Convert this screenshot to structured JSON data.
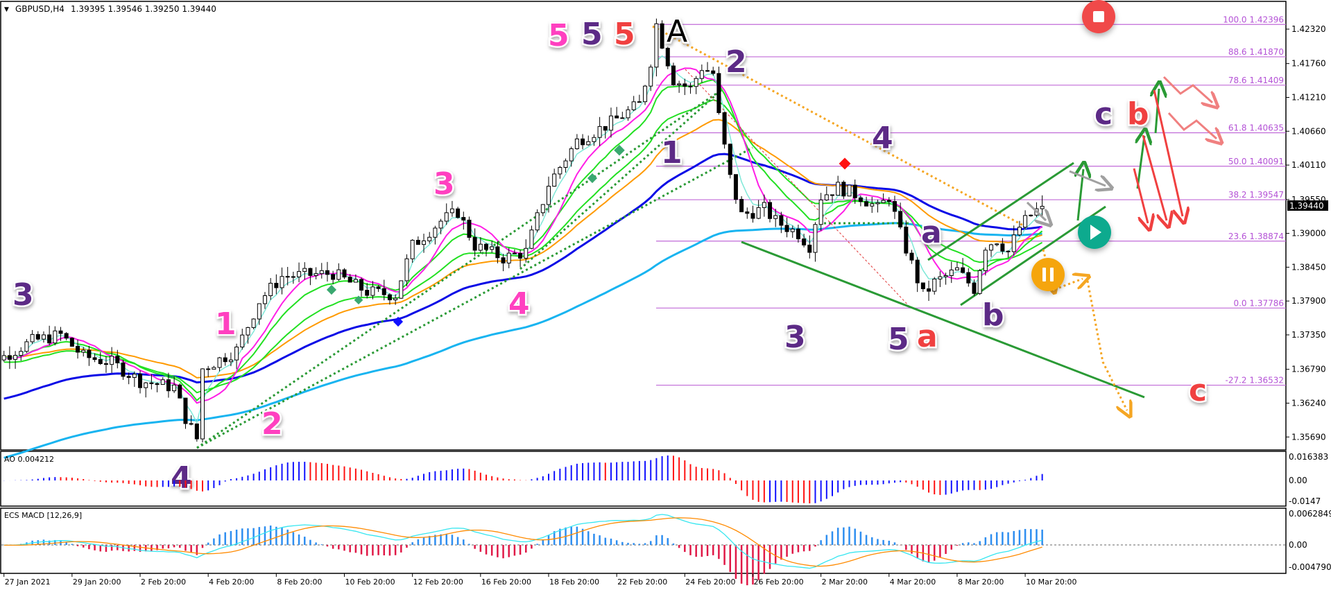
{
  "header": {
    "menu_glyph": "▼",
    "symbol": "GBPUSD,H4",
    "ohlc": "1.39395 1.39546 1.39250 1.39440"
  },
  "ao_panel": {
    "label": "AO 0.004212",
    "ticks": [
      "0.016383",
      "0.00",
      "-0.0147"
    ]
  },
  "macd_panel": {
    "label": "ECS MACD [12,26,9]",
    "ticks": [
      "0.0062849",
      "0.00",
      "-0.0047902"
    ]
  },
  "colors": {
    "fib": "#b452d6",
    "bull_candle": "#ffffff",
    "bear_candle": "#000000",
    "ma_blue": "#0a0ae6",
    "ma_lightblue": "#18b4f0",
    "ma_orange": "#ff9a00",
    "ma_green": "#22e022",
    "ma_magenta": "#ff1ee6",
    "ma_cyan": "#7fe8d8",
    "ao_up": "#1010ff",
    "ao_down": "#ff1010",
    "macd_line": "#35e6f0",
    "macd_signal": "#ff8a00",
    "macd_hist_pos": "#2e8ef0",
    "macd_hist_neg": "#e01846",
    "trend_green": "#2a9a35",
    "trend_orange": "#f5a623",
    "arrow_red": "#f04040",
    "arrow_gray": "#a0a0a0"
  },
  "chart_data": {
    "type": "candlestick",
    "symbol": "GBPUSD",
    "timeframe": "H4",
    "current_price": "1.39440",
    "y_ticks": [
      "1.42320",
      "1.41760",
      "1.41210",
      "1.40660",
      "1.40110",
      "1.39550",
      "1.39000",
      "1.38450",
      "1.37900",
      "1.37350",
      "1.36790",
      "1.36240",
      "1.35690"
    ],
    "ylim": [
      1.355,
      1.426
    ],
    "x_ticks": [
      "27 Jan 2021",
      "29 Jan 20:00",
      "2 Feb 20:00",
      "4 Feb 20:00",
      "8 Feb 20:00",
      "10 Feb 20:00",
      "12 Feb 20:00",
      "16 Feb 20:00",
      "18 Feb 20:00",
      "22 Feb 20:00",
      "24 Feb 20:00",
      "26 Feb 20:00",
      "2 Mar 20:00",
      "4 Mar 20:00",
      "8 Mar 20:00",
      "10 Mar 20:00"
    ],
    "price_path": [
      {
        "t": "27 Jan 20:00",
        "p": 1.37
      },
      {
        "t": "28 Jan 16:00",
        "p": 1.3725
      },
      {
        "t": "29 Jan 12:00",
        "p": 1.3735
      },
      {
        "t": "1 Feb 04:00",
        "p": 1.37
      },
      {
        "t": "2 Feb 00:00",
        "p": 1.369
      },
      {
        "t": "2 Feb 20:00",
        "p": 1.366
      },
      {
        "t": "3 Feb 20:00",
        "p": 1.365
      },
      {
        "t": "4 Feb 04:00",
        "p": 1.36
      },
      {
        "t": "4 Feb 12:00",
        "p": 1.3566
      },
      {
        "t": "4 Feb 16:00",
        "p": 1.368
      },
      {
        "t": "5 Feb 16:00",
        "p": 1.371
      },
      {
        "t": "8 Feb 08:00",
        "p": 1.379
      },
      {
        "t": "9 Feb 00:00",
        "p": 1.383
      },
      {
        "t": "10 Feb 12:00",
        "p": 1.3835
      },
      {
        "t": "11 Feb 12:00",
        "p": 1.3805
      },
      {
        "t": "12 Feb 08:00",
        "p": 1.38
      },
      {
        "t": "12 Feb 20:00",
        "p": 1.388
      },
      {
        "t": "15 Feb 16:00",
        "p": 1.392
      },
      {
        "t": "16 Feb 04:00",
        "p": 1.3935
      },
      {
        "t": "16 Feb 16:00",
        "p": 1.388
      },
      {
        "t": "17 Feb 12:00",
        "p": 1.386
      },
      {
        "t": "18 Feb 04:00",
        "p": 1.387
      },
      {
        "t": "18 Feb 20:00",
        "p": 1.398
      },
      {
        "t": "19 Feb 16:00",
        "p": 1.405
      },
      {
        "t": "22 Feb 16:00",
        "p": 1.408
      },
      {
        "t": "23 Feb 12:00",
        "p": 1.411
      },
      {
        "t": "23 Feb 20:00",
        "p": 1.418
      },
      {
        "t": "24 Feb 00:00",
        "p": 1.424
      },
      {
        "t": "24 Feb 12:00",
        "p": 1.415
      },
      {
        "t": "25 Feb 00:00",
        "p": 1.4135
      },
      {
        "t": "25 Feb 08:00",
        "p": 1.417
      },
      {
        "t": "25 Feb 16:00",
        "p": 1.416
      },
      {
        "t": "25 Feb 20:00",
        "p": 1.409
      },
      {
        "t": "26 Feb 04:00",
        "p": 1.399
      },
      {
        "t": "26 Feb 12:00",
        "p": 1.393
      },
      {
        "t": "1 Mar 04:00",
        "p": 1.394
      },
      {
        "t": "1 Mar 12:00",
        "p": 1.392
      },
      {
        "t": "2 Mar 04:00",
        "p": 1.39
      },
      {
        "t": "2 Mar 12:00",
        "p": 1.388
      },
      {
        "t": "2 Mar 20:00",
        "p": 1.396
      },
      {
        "t": "3 Mar 08:00",
        "p": 1.3975
      },
      {
        "t": "4 Mar 00:00",
        "p": 1.396
      },
      {
        "t": "4 Mar 12:00",
        "p": 1.394
      },
      {
        "t": "4 Mar 20:00",
        "p": 1.396
      },
      {
        "t": "5 Mar 04:00",
        "p": 1.39
      },
      {
        "t": "5 Mar 12:00",
        "p": 1.385
      },
      {
        "t": "5 Mar 20:00",
        "p": 1.38
      },
      {
        "t": "8 Mar 04:00",
        "p": 1.382
      },
      {
        "t": "8 Mar 12:00",
        "p": 1.383
      },
      {
        "t": "8 Mar 20:00",
        "p": 1.384
      },
      {
        "t": "9 Mar 08:00",
        "p": 1.381
      },
      {
        "t": "9 Mar 16:00",
        "p": 1.388
      },
      {
        "t": "10 Mar 00:00",
        "p": 1.389
      },
      {
        "t": "10 Mar 08:00",
        "p": 1.387
      },
      {
        "t": "10 Mar 16:00",
        "p": 1.391
      },
      {
        "t": "11 Mar 00:00",
        "p": 1.393
      },
      {
        "t": "11 Mar 08:00",
        "p": 1.3944
      }
    ],
    "fib_levels": [
      {
        "label": "100.0 1.42396",
        "level": 100.0,
        "price": 1.42396
      },
      {
        "label": "88.6 1.41870",
        "level": 88.6,
        "price": 1.4187
      },
      {
        "label": "78.6 1.41409",
        "level": 78.6,
        "price": 1.41409
      },
      {
        "label": "61.8 1.40635",
        "level": 61.8,
        "price": 1.40635
      },
      {
        "label": "50.0 1.40091",
        "level": 50.0,
        "price": 1.40091
      },
      {
        "label": "38.2 1.39547",
        "level": 38.2,
        "price": 1.39547
      },
      {
        "label": "23.6 1.38874",
        "level": 23.6,
        "price": 1.38874
      },
      {
        "label": "0.0 1.37786",
        "level": 0.0,
        "price": 1.37786
      },
      {
        "label": "-27.2 1.36532",
        "level": -27.2,
        "price": 1.36532
      }
    ],
    "wave_labels": [
      {
        "text": "3",
        "color": "#5b2a86"
      },
      {
        "text": "1",
        "color": "#ff3fc0"
      },
      {
        "text": "2",
        "color": "#ff3fc0"
      },
      {
        "text": "3",
        "color": "#ff3fc0"
      },
      {
        "text": "4",
        "color": "#ff3fc0"
      },
      {
        "text": "4",
        "color": "#5b2a86"
      },
      {
        "text": "5",
        "color": "#ff3fc0"
      },
      {
        "text": "5",
        "color": "#5b2a86"
      },
      {
        "text": "5",
        "color": "#f04040"
      },
      {
        "text": "A",
        "color": "#000000"
      },
      {
        "text": "2",
        "color": "#5b2a86"
      },
      {
        "text": "1",
        "color": "#5b2a86"
      },
      {
        "text": "3",
        "color": "#5b2a86"
      },
      {
        "text": "4",
        "color": "#5b2a86"
      },
      {
        "text": "a",
        "color": "#5b2a86"
      },
      {
        "text": "5",
        "color": "#5b2a86"
      },
      {
        "text": "a",
        "color": "#f04040"
      },
      {
        "text": "b",
        "color": "#5b2a86"
      },
      {
        "text": "c",
        "color": "#5b2a86"
      },
      {
        "text": "b",
        "color": "#f04040"
      },
      {
        "text": "c",
        "color": "#f04040"
      }
    ],
    "markers": {
      "stop": "stop-icon",
      "play": "play-icon",
      "pause": "pause-icon"
    },
    "grid": false
  }
}
